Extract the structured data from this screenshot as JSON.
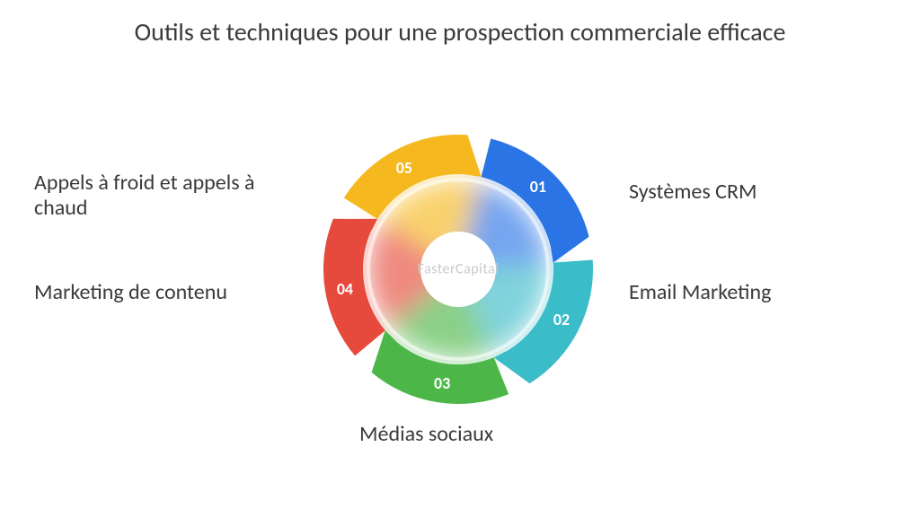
{
  "title": "Outils et techniques pour une prospection commerciale efficace",
  "watermark": "FasterCapital",
  "chart": {
    "type": "segmented-donut",
    "outer_radius": 150,
    "ring_thickness": 44,
    "inner_disc_radius": 100,
    "hole_radius": 42,
    "background": "#ffffff",
    "segments": [
      {
        "num": "01",
        "label": "Systèmes CRM",
        "color": "#2a74e6",
        "start_deg": -76,
        "end_deg": -4
      },
      {
        "num": "02",
        "label": "Email Marketing",
        "color": "#3bbcc9",
        "start_deg": -4,
        "end_deg": 68
      },
      {
        "num": "03",
        "label": "Médias sociaux",
        "color": "#4cb748",
        "start_deg": 68,
        "end_deg": 140
      },
      {
        "num": "04",
        "label": "Marketing de contenu",
        "color": "#e64a3c",
        "start_deg": 140,
        "end_deg": 212
      },
      {
        "num": "05",
        "label": "Appels à froid et appels à chaud",
        "color": "#f5b91f",
        "start_deg": 212,
        "end_deg": 284
      }
    ],
    "number_font_size": 18,
    "number_font_weight": 700,
    "number_color": "#ffffff",
    "label_font_size": 24,
    "label_color": "#3a3a3a"
  }
}
